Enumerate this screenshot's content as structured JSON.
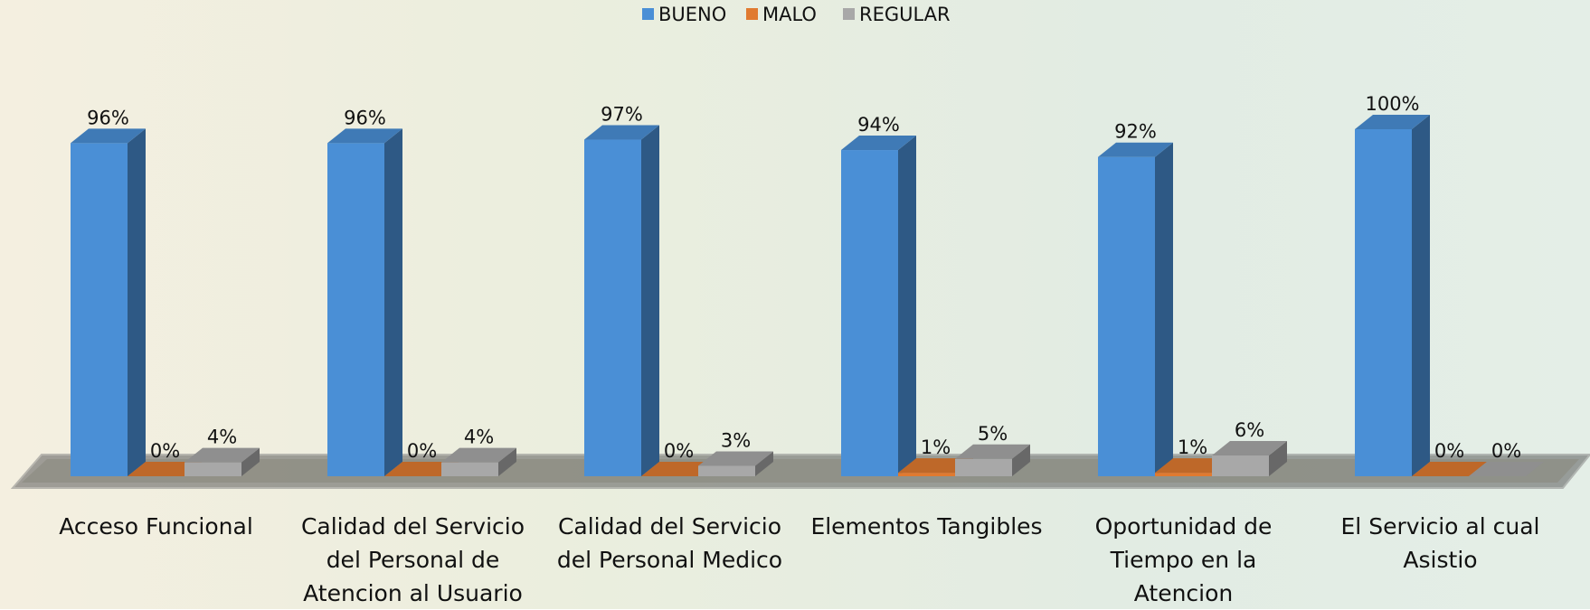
{
  "chart_data": {
    "type": "bar3d",
    "categories": [
      "Acceso Funcional",
      "Calidad del Servicio del Personal de Atencion al Usuario",
      "Calidad del Servicio del Personal Medico",
      "Elementos Tangibles",
      "Oportunidad de Tiempo en la Atencion",
      "El Servicio al cual Asistio"
    ],
    "series": [
      {
        "name": "BUENO",
        "color": "#4a8fd6",
        "values": [
          96,
          96,
          97,
          94,
          92,
          100
        ],
        "value_labels": [
          "96%",
          "96%",
          "97%",
          "94%",
          "92%",
          "100%"
        ]
      },
      {
        "name": "MALO",
        "color": "#e07a30",
        "values": [
          0,
          0,
          0,
          1,
          1,
          0
        ],
        "value_labels": [
          "0%",
          "0%",
          "0%",
          "1%",
          "1%",
          "0%"
        ]
      },
      {
        "name": "REGULAR",
        "color": "#a8a8a8",
        "values": [
          4,
          4,
          3,
          5,
          6,
          0
        ],
        "value_labels": [
          "4%",
          "4%",
          "3%",
          "5%",
          "6%",
          "0%"
        ]
      }
    ],
    "legend": "top"
  }
}
